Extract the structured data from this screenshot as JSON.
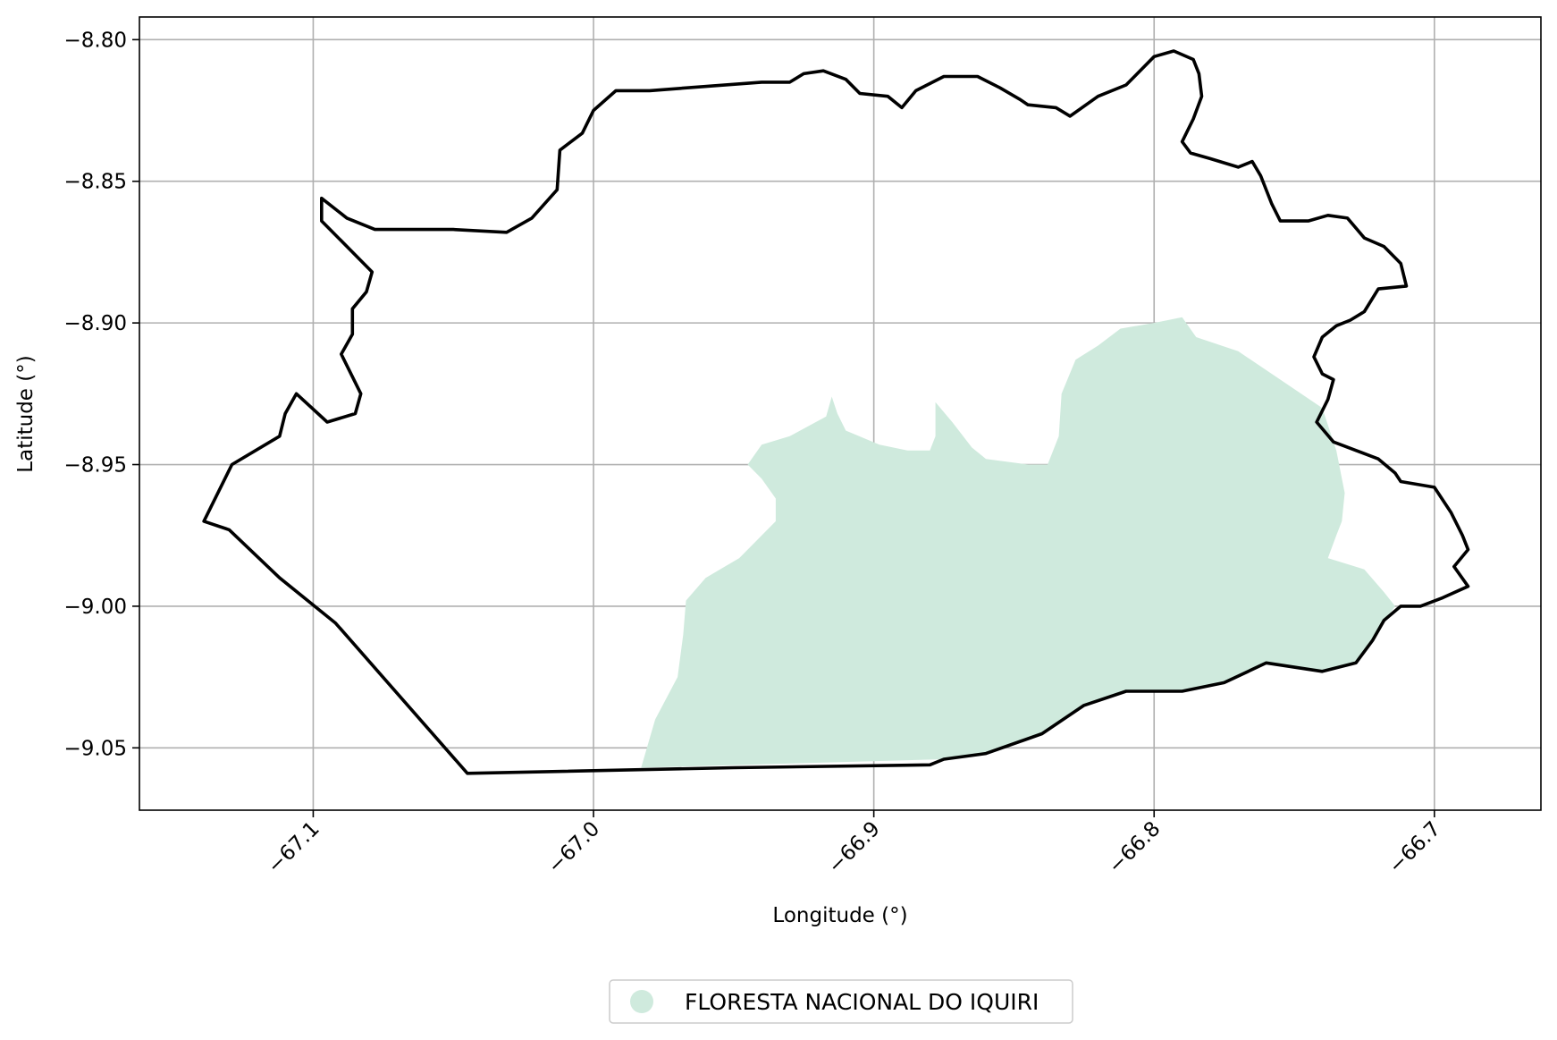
{
  "chart_data": {
    "type": "map",
    "title": "",
    "xlabel": "Longitude (°)",
    "ylabel": "Latitude (°)",
    "xlim": [
      -67.162,
      -66.662
    ],
    "ylim": [
      -9.072,
      -8.792
    ],
    "xticks": [
      -67.1,
      -67.0,
      -66.9,
      -66.8,
      -66.7
    ],
    "xtick_labels": [
      "−67.1",
      "−67.0",
      "−66.9",
      "−66.8",
      "−66.7"
    ],
    "yticks": [
      -8.8,
      -8.85,
      -8.9,
      -8.95,
      -9.0,
      -9.05
    ],
    "ytick_labels": [
      "−8.80",
      "−8.85",
      "−8.90",
      "−8.95",
      "−9.00",
      "−9.05"
    ],
    "grid": true,
    "legend": {
      "position": "bottom-center",
      "entries": [
        {
          "label": "FLORESTA NACIONAL DO IQUIRI",
          "color": "#cfeadd"
        }
      ]
    },
    "layers": [
      {
        "name": "FLORESTA NACIONAL DO IQUIRI",
        "kind": "fill",
        "color": "#cfeadd",
        "coords": [
          [
            -66.983,
            -9.057
          ],
          [
            -66.978,
            -9.04
          ],
          [
            -66.97,
            -9.025
          ],
          [
            -66.968,
            -9.01
          ],
          [
            -66.967,
            -8.998
          ],
          [
            -66.96,
            -8.99
          ],
          [
            -66.948,
            -8.983
          ],
          [
            -66.94,
            -8.975
          ],
          [
            -66.935,
            -8.97
          ],
          [
            -66.935,
            -8.962
          ],
          [
            -66.94,
            -8.955
          ],
          [
            -66.945,
            -8.95
          ],
          [
            -66.94,
            -8.943
          ],
          [
            -66.93,
            -8.94
          ],
          [
            -66.917,
            -8.933
          ],
          [
            -66.915,
            -8.926
          ],
          [
            -66.913,
            -8.932
          ],
          [
            -66.91,
            -8.938
          ],
          [
            -66.898,
            -8.943
          ],
          [
            -66.888,
            -8.945
          ],
          [
            -66.88,
            -8.945
          ],
          [
            -66.878,
            -8.94
          ],
          [
            -66.878,
            -8.928
          ],
          [
            -66.872,
            -8.935
          ],
          [
            -66.865,
            -8.944
          ],
          [
            -66.86,
            -8.948
          ],
          [
            -66.845,
            -8.95
          ],
          [
            -66.838,
            -8.95
          ],
          [
            -66.834,
            -8.94
          ],
          [
            -66.833,
            -8.925
          ],
          [
            -66.828,
            -8.913
          ],
          [
            -66.82,
            -8.908
          ],
          [
            -66.812,
            -8.902
          ],
          [
            -66.8,
            -8.9
          ],
          [
            -66.79,
            -8.898
          ],
          [
            -66.785,
            -8.905
          ],
          [
            -66.77,
            -8.91
          ],
          [
            -66.755,
            -8.92
          ],
          [
            -66.74,
            -8.93
          ],
          [
            -66.735,
            -8.945
          ],
          [
            -66.732,
            -8.96
          ],
          [
            -66.733,
            -8.97
          ],
          [
            -66.735,
            -8.975
          ],
          [
            -66.738,
            -8.983
          ],
          [
            -66.725,
            -8.987
          ],
          [
            -66.718,
            -8.995
          ],
          [
            -66.714,
            -9.0
          ],
          [
            -66.72,
            -9.008
          ],
          [
            -66.728,
            -9.02
          ],
          [
            -66.74,
            -9.023
          ],
          [
            -66.76,
            -9.02
          ],
          [
            -66.775,
            -9.027
          ],
          [
            -66.79,
            -9.03
          ],
          [
            -66.81,
            -9.03
          ],
          [
            -66.825,
            -9.035
          ],
          [
            -66.84,
            -9.045
          ],
          [
            -66.86,
            -9.052
          ],
          [
            -66.875,
            -9.054
          ],
          [
            -66.983,
            -9.057
          ]
        ]
      },
      {
        "name": "boundary",
        "kind": "outline",
        "color": "#000000",
        "coords": [
          [
            -67.139,
            -8.97
          ],
          [
            -67.129,
            -8.95
          ],
          [
            -67.112,
            -8.94
          ],
          [
            -67.11,
            -8.932
          ],
          [
            -67.106,
            -8.925
          ],
          [
            -67.095,
            -8.935
          ],
          [
            -67.085,
            -8.932
          ],
          [
            -67.083,
            -8.925
          ],
          [
            -67.09,
            -8.911
          ],
          [
            -67.086,
            -8.904
          ],
          [
            -67.086,
            -8.895
          ],
          [
            -67.081,
            -8.889
          ],
          [
            -67.079,
            -8.882
          ],
          [
            -67.097,
            -8.864
          ],
          [
            -67.097,
            -8.856
          ],
          [
            -67.088,
            -8.863
          ],
          [
            -67.078,
            -8.867
          ],
          [
            -67.05,
            -8.867
          ],
          [
            -67.031,
            -8.868
          ],
          [
            -67.022,
            -8.863
          ],
          [
            -67.013,
            -8.853
          ],
          [
            -67.012,
            -8.839
          ],
          [
            -67.004,
            -8.833
          ],
          [
            -67.0,
            -8.825
          ],
          [
            -66.992,
            -8.818
          ],
          [
            -66.98,
            -8.818
          ],
          [
            -66.94,
            -8.815
          ],
          [
            -66.93,
            -8.815
          ],
          [
            -66.925,
            -8.812
          ],
          [
            -66.918,
            -8.811
          ],
          [
            -66.91,
            -8.814
          ],
          [
            -66.905,
            -8.819
          ],
          [
            -66.895,
            -8.82
          ],
          [
            -66.89,
            -8.824
          ],
          [
            -66.885,
            -8.818
          ],
          [
            -66.875,
            -8.813
          ],
          [
            -66.863,
            -8.813
          ],
          [
            -66.855,
            -8.817
          ],
          [
            -66.848,
            -8.821
          ],
          [
            -66.845,
            -8.823
          ],
          [
            -66.835,
            -8.824
          ],
          [
            -66.83,
            -8.827
          ],
          [
            -66.82,
            -8.82
          ],
          [
            -66.81,
            -8.816
          ],
          [
            -66.8,
            -8.806
          ],
          [
            -66.793,
            -8.804
          ],
          [
            -66.786,
            -8.807
          ],
          [
            -66.784,
            -8.812
          ],
          [
            -66.783,
            -8.82
          ],
          [
            -66.786,
            -8.828
          ],
          [
            -66.79,
            -8.836
          ],
          [
            -66.787,
            -8.84
          ],
          [
            -66.78,
            -8.842
          ],
          [
            -66.77,
            -8.845
          ],
          [
            -66.765,
            -8.843
          ],
          [
            -66.762,
            -8.848
          ],
          [
            -66.758,
            -8.858
          ],
          [
            -66.755,
            -8.864
          ],
          [
            -66.745,
            -8.864
          ],
          [
            -66.738,
            -8.862
          ],
          [
            -66.731,
            -8.863
          ],
          [
            -66.725,
            -8.87
          ],
          [
            -66.718,
            -8.873
          ],
          [
            -66.712,
            -8.879
          ],
          [
            -66.71,
            -8.887
          ],
          [
            -66.72,
            -8.888
          ],
          [
            -66.725,
            -8.896
          ],
          [
            -66.73,
            -8.899
          ],
          [
            -66.735,
            -8.901
          ],
          [
            -66.74,
            -8.905
          ],
          [
            -66.743,
            -8.912
          ],
          [
            -66.74,
            -8.918
          ],
          [
            -66.736,
            -8.92
          ],
          [
            -66.738,
            -8.927
          ],
          [
            -66.742,
            -8.935
          ],
          [
            -66.736,
            -8.942
          ],
          [
            -66.728,
            -8.945
          ],
          [
            -66.72,
            -8.948
          ],
          [
            -66.714,
            -8.953
          ],
          [
            -66.712,
            -8.956
          ],
          [
            -66.7,
            -8.958
          ],
          [
            -66.694,
            -8.967
          ],
          [
            -66.69,
            -8.975
          ],
          [
            -66.688,
            -8.98
          ],
          [
            -66.693,
            -8.986
          ],
          [
            -66.688,
            -8.993
          ],
          [
            -66.697,
            -8.997
          ],
          [
            -66.705,
            -9.0
          ],
          [
            -66.712,
            -9.0
          ],
          [
            -66.718,
            -9.005
          ],
          [
            -66.722,
            -9.012
          ],
          [
            -66.728,
            -9.02
          ],
          [
            -66.74,
            -9.023
          ],
          [
            -66.76,
            -9.02
          ],
          [
            -66.775,
            -9.027
          ],
          [
            -66.79,
            -9.03
          ],
          [
            -66.81,
            -9.03
          ],
          [
            -66.825,
            -9.035
          ],
          [
            -66.84,
            -9.045
          ],
          [
            -66.86,
            -9.052
          ],
          [
            -66.875,
            -9.054
          ],
          [
            -66.88,
            -9.056
          ],
          [
            -66.95,
            -9.057
          ],
          [
            -67.045,
            -9.059
          ],
          [
            -67.092,
            -9.006
          ],
          [
            -67.112,
            -8.99
          ],
          [
            -67.13,
            -8.973
          ],
          [
            -67.139,
            -8.97
          ]
        ]
      }
    ]
  }
}
